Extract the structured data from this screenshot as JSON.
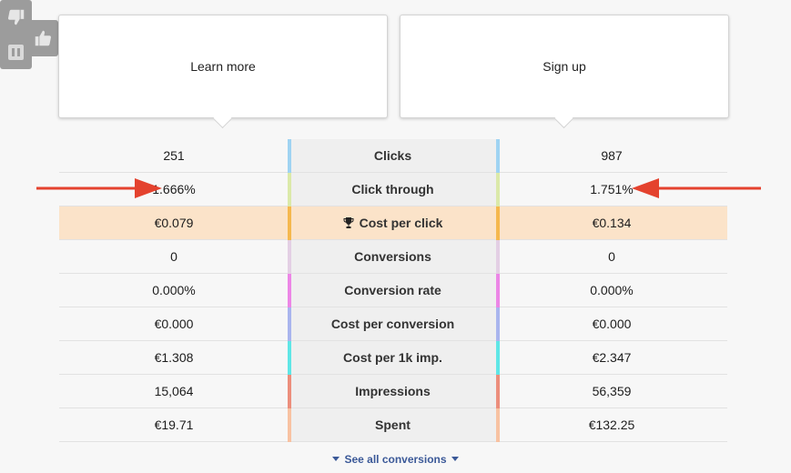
{
  "variants": {
    "left_title": "Learn more",
    "right_title": "Sign up"
  },
  "controls": {
    "thumb_up_icon": "thumb-up-icon",
    "thumb_down_icon": "thumb-down-icon",
    "pause_icon": "pause-icon"
  },
  "colors": {
    "highlight_row": "#fbe3c9",
    "arrow": "#e4422e",
    "link": "#3b5998"
  },
  "metrics": [
    {
      "label": "Clicks",
      "left": "251",
      "right": "987",
      "color": "#9fd3f2"
    },
    {
      "label": "Click through",
      "left": "1.666%",
      "right": "1.751%",
      "color": "#dbe9a9"
    },
    {
      "label": "Cost per click",
      "left": "€0.079",
      "right": "€0.134",
      "color": "#f5b84e"
    },
    {
      "label": "Conversions",
      "left": "0",
      "right": "0",
      "color": "#e3cfe4"
    },
    {
      "label": "Conversion rate",
      "left": "0.000%",
      "right": "0.000%",
      "color": "#ec86e6"
    },
    {
      "label": "Cost per conversion",
      "left": "€0.000",
      "right": "€0.000",
      "color": "#a9b5ee"
    },
    {
      "label": "Cost per 1k imp.",
      "left": "€1.308",
      "right": "€2.347",
      "color": "#5fe6e6"
    },
    {
      "label": "Impressions",
      "left": "15,064",
      "right": "56,359",
      "color": "#ec8e7c"
    },
    {
      "label": "Spent",
      "left": "€19.71",
      "right": "€132.25",
      "color": "#f8c2a2"
    }
  ],
  "footer": {
    "see_all": "See all conversions"
  }
}
